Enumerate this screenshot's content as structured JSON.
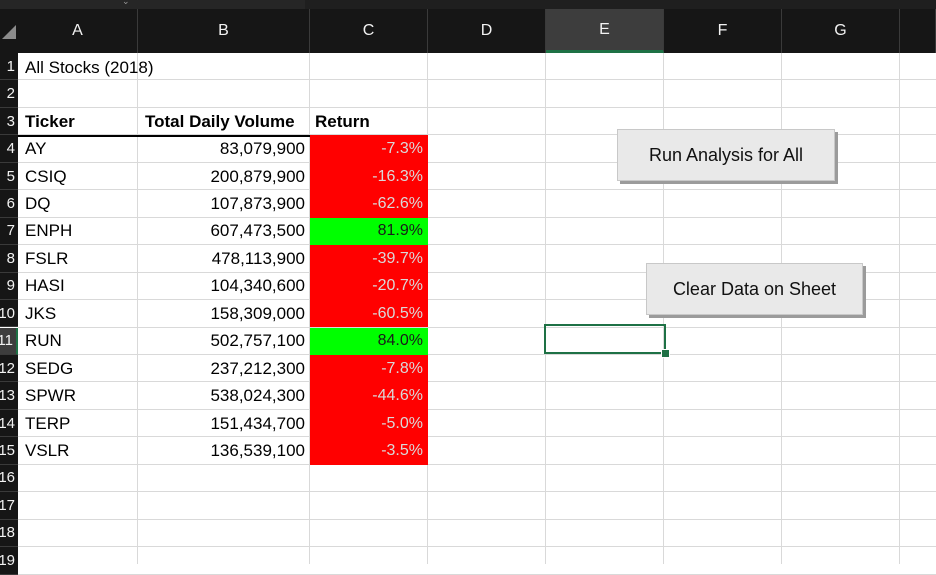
{
  "columns": [
    "A",
    "B",
    "C",
    "D",
    "E",
    "F",
    "G"
  ],
  "rows": [
    "1",
    "2",
    "3",
    "4",
    "5",
    "6",
    "7",
    "8",
    "9",
    "10",
    "11",
    "12",
    "13",
    "14",
    "15",
    "16",
    "17",
    "18",
    "19"
  ],
  "title": "All Stocks (2018)",
  "headers": {
    "ticker": "Ticker",
    "volume": "Total Daily Volume",
    "return": "Return"
  },
  "stocks": [
    {
      "ticker": "AY",
      "volume": "83,079,900",
      "return": "-7.3%",
      "positive": false
    },
    {
      "ticker": "CSIQ",
      "volume": "200,879,900",
      "return": "-16.3%",
      "positive": false
    },
    {
      "ticker": "DQ",
      "volume": "107,873,900",
      "return": "-62.6%",
      "positive": false
    },
    {
      "ticker": "ENPH",
      "volume": "607,473,500",
      "return": "81.9%",
      "positive": true
    },
    {
      "ticker": "FSLR",
      "volume": "478,113,900",
      "return": "-39.7%",
      "positive": false
    },
    {
      "ticker": "HASI",
      "volume": "104,340,600",
      "return": "-20.7%",
      "positive": false
    },
    {
      "ticker": "JKS",
      "volume": "158,309,000",
      "return": "-60.5%",
      "positive": false
    },
    {
      "ticker": "RUN",
      "volume": "502,757,100",
      "return": "84.0%",
      "positive": true
    },
    {
      "ticker": "SEDG",
      "volume": "237,212,300",
      "return": "-7.8%",
      "positive": false
    },
    {
      "ticker": "SPWR",
      "volume": "538,024,300",
      "return": "-44.6%",
      "positive": false
    },
    {
      "ticker": "TERP",
      "volume": "151,434,700",
      "return": "-5.0%",
      "positive": false
    },
    {
      "ticker": "VSLR",
      "volume": "136,539,100",
      "return": "-3.5%",
      "positive": false
    }
  ],
  "buttons": {
    "run_all": "Run Analysis for All",
    "clear": "Clear Data on Sheet"
  },
  "selected": {
    "column": "E",
    "row": "11"
  },
  "colors": {
    "negative": "#ff0000",
    "positive": "#00ff00",
    "accent": "#1e7145"
  }
}
